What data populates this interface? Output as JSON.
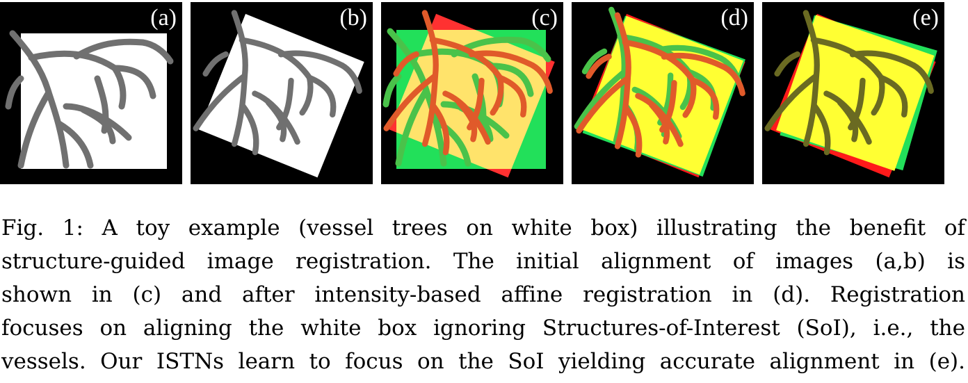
{
  "panels": [
    {
      "label": "(a)",
      "type": "moving"
    },
    {
      "label": "(b)",
      "type": "fixed"
    },
    {
      "label": "(c)",
      "type": "overlay-initial"
    },
    {
      "label": "(d)",
      "type": "overlay-intensity"
    },
    {
      "label": "(e)",
      "type": "overlay-istn"
    }
  ],
  "colors": {
    "background": "#000000",
    "box_white": "#ffffff",
    "vessel_gray": "#707070",
    "overlay_red": "#ff1a1a",
    "overlay_green": "#22e05a",
    "overlay_yellow": "#ffff33",
    "vessel_red": "#e05a2a",
    "vessel_green": "#4ac24a",
    "vessel_dark": "#6a6a22"
  },
  "caption": {
    "lines": [
      "Fig. 1: A toy example (vessel trees on white box) illustrating the benefit of",
      "structure-guided image registration. The initial alignment of images (a,b) is",
      "shown in (c) and after intensity-based affine registration in (d). Registration",
      "focuses on aligning the white box ignoring Structures-of-Interest (SoI), i.e., the",
      "vessels. Our ISTNs learn to focus on the SoI yielding accurate alignment in (e)."
    ]
  }
}
